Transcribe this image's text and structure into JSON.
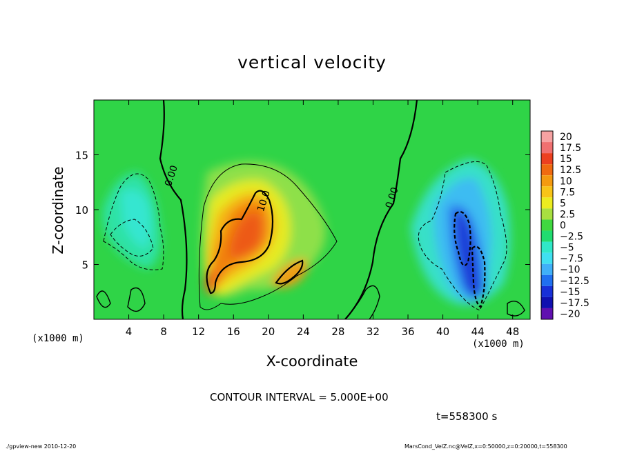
{
  "chart_data": {
    "type": "heatmap",
    "title": "vertical velocity",
    "xlabel": "X-coordinate",
    "ylabel": "Z-coordinate",
    "x_unit_left": "(x1000 m)",
    "x_unit_right": "(x1000 m)",
    "xlim": [
      0,
      50
    ],
    "ylim": [
      0,
      20
    ],
    "x_ticks": [
      4,
      8,
      12,
      16,
      20,
      24,
      28,
      32,
      36,
      40,
      44,
      48
    ],
    "y_ticks": [
      5,
      10,
      15
    ],
    "contour_labels": [
      {
        "text": "0.00",
        "x": 9.2,
        "y": 13
      },
      {
        "text": "10.0",
        "x": 19.8,
        "y": 10.7
      },
      {
        "text": "0.00",
        "x": 34.5,
        "y": 11
      }
    ],
    "colorbar": {
      "levels": [
        "20",
        "17.5",
        "15",
        "12.5",
        "10",
        "7.5",
        "5",
        "2.5",
        "0",
        "−2.5",
        "−5",
        "−7.5",
        "−10",
        "−12.5",
        "−15",
        "−17.5",
        "−20"
      ],
      "colors": [
        "#f6a2a2",
        "#f07070",
        "#ec4020",
        "#f06a10",
        "#f49a10",
        "#f8c418",
        "#ecec20",
        "#a8e040",
        "#40d840",
        "#20dc70",
        "#30e8c8",
        "#40e0f0",
        "#40b0f8",
        "#2070f0",
        "#1830d8",
        "#1010b0",
        "#6010b0"
      ]
    },
    "features": [
      {
        "kind": "updraft",
        "x": 17,
        "z": 7,
        "peak": 15
      },
      {
        "kind": "updraft",
        "x": 23,
        "z": 4,
        "peak": 12
      },
      {
        "kind": "downdraft",
        "x": 43,
        "z": 6,
        "peak": -15
      },
      {
        "kind": "downdraft",
        "x": 4.5,
        "z": 10,
        "peak": -7.5
      }
    ]
  },
  "annotations": {
    "contour_interval": "CONTOUR INTERVAL = 5.000E+00",
    "time": "t=558300 s",
    "footer_left": "./gpview-new  2010-12-20",
    "footer_right": "MarsCond_VelZ.nc@VelZ,x=0:50000,z=0:20000,t=558300"
  }
}
